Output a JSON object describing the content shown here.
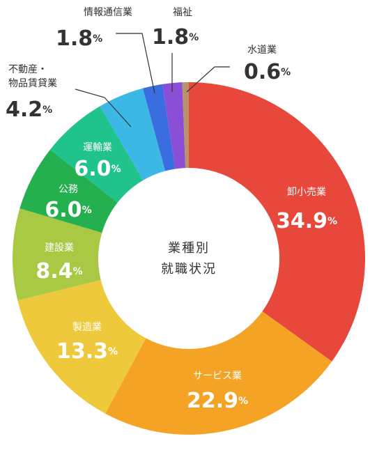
{
  "chart_data": {
    "type": "donut",
    "title_lines": [
      "業種別",
      "就職状況"
    ],
    "categories": [
      "卸小売業",
      "サービス業",
      "製造業",
      "建設業",
      "公務",
      "運輸業",
      "不動産・\n物品賃貸業",
      "情報通信業",
      "福祉",
      "水道業"
    ],
    "values": [
      34.9,
      22.9,
      13.3,
      8.4,
      6.0,
      6.0,
      4.2,
      1.8,
      1.8,
      0.6
    ],
    "value_labels": [
      "34.9%",
      "22.9%",
      "13.3%",
      "8.4%",
      "6.0%",
      "6.0%",
      "4.2%",
      "1.8%",
      "1.8%",
      "0.6%"
    ],
    "colors": [
      "#e8473b",
      "#f4a324",
      "#efc93c",
      "#a9c843",
      "#25b04f",
      "#20c38c",
      "#3bb8e6",
      "#3a6ee0",
      "#8a4fd6",
      "#b8946a"
    ]
  }
}
